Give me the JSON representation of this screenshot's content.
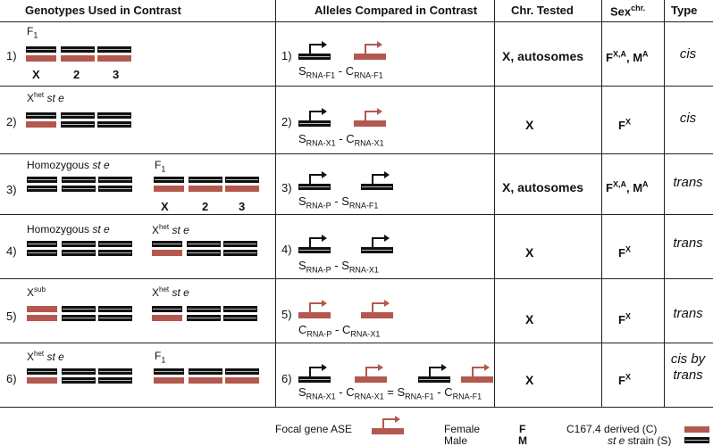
{
  "headers": {
    "genotypes": "Genotypes Used in Contrast",
    "alleles": "Alleles Compared in Contrast",
    "chr": "Chr. Tested",
    "sex": "Sex",
    "sex_sup": "chr.",
    "type": "Type"
  },
  "rows": [
    {
      "num": "1)",
      "genotype_labels": [
        "F1"
      ],
      "chrom_labels": [
        "X",
        "2",
        "3"
      ],
      "contrast": {
        "num": "1)",
        "parts": [
          [
            "S",
            "RNA-F1"
          ],
          [
            "-"
          ],
          [
            "C",
            "RNA-F1"
          ]
        ]
      },
      "chr": "X, autosomes",
      "sex": [
        [
          "F",
          "X,A"
        ],
        [
          ", M",
          "A"
        ]
      ],
      "type": [
        "cis"
      ]
    },
    {
      "num": "2)",
      "genotype_labels": [
        "Xhet st e"
      ],
      "contrast": {
        "num": "2)",
        "parts": [
          [
            "S",
            "RNA-X1"
          ],
          [
            "-"
          ],
          [
            "C",
            "RNA-X1"
          ]
        ]
      },
      "chr": "X",
      "sex": [
        [
          "F",
          "X"
        ]
      ],
      "type": [
        "cis"
      ]
    },
    {
      "num": "3)",
      "genotype_labels": [
        "Homozygous st e",
        "F1"
      ],
      "chrom_labels": [
        "X",
        "2",
        "3"
      ],
      "contrast": {
        "num": "3)",
        "parts": [
          [
            "S",
            "RNA-P"
          ],
          [
            "-"
          ],
          [
            "S",
            "RNA-F1"
          ]
        ]
      },
      "chr": "X, autosomes",
      "sex": [
        [
          "F",
          "X,A"
        ],
        [
          ", M",
          "A"
        ]
      ],
      "type": [
        "trans"
      ]
    },
    {
      "num": "4)",
      "genotype_labels": [
        "Homozygous st e",
        "Xhet st e"
      ],
      "contrast": {
        "num": "4)",
        "parts": [
          [
            "S",
            "RNA-P"
          ],
          [
            "-"
          ],
          [
            "S",
            "RNA-X1"
          ]
        ]
      },
      "chr": "X",
      "sex": [
        [
          "F",
          "X"
        ]
      ],
      "type": [
        "trans"
      ]
    },
    {
      "num": "5)",
      "genotype_labels": [
        "Xsub",
        "Xhet st e"
      ],
      "contrast": {
        "num": "5)",
        "parts": [
          [
            "C",
            "RNA-P"
          ],
          [
            "-"
          ],
          [
            "C",
            "RNA-X1"
          ]
        ]
      },
      "chr": "X",
      "sex": [
        [
          "F",
          "X"
        ]
      ],
      "type": [
        "trans"
      ]
    },
    {
      "num": "6)",
      "genotype_labels": [
        "Xhet st e",
        "F1"
      ],
      "contrast": {
        "num": "6)",
        "parts": [
          [
            "S",
            "RNA-X1"
          ],
          [
            "-"
          ],
          [
            "C",
            "RNA-X1"
          ],
          [
            "="
          ],
          [
            "S",
            "RNA-F1"
          ],
          [
            "-"
          ],
          [
            "C",
            "RNA-F1"
          ]
        ]
      },
      "chr": "X",
      "sex": [
        [
          "F",
          "X"
        ]
      ],
      "type": [
        "cis by",
        "trans"
      ]
    }
  ],
  "legend": {
    "focal": "Focal gene ASE",
    "female": "Female",
    "female_sym": "F",
    "male": "Male",
    "male_sym": "M",
    "c_derived": "C167.4 derived (C)",
    "s_strain": "st e strain (S)"
  },
  "colors": {
    "c_strain": "#b4584f",
    "s_strain": "#111111",
    "stripe": "#bbbbbb"
  }
}
